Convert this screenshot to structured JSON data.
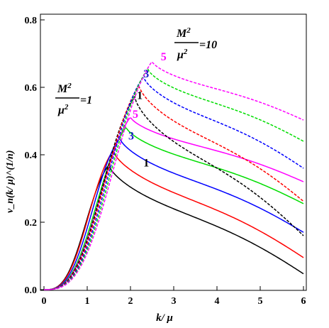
{
  "chart_data": {
    "type": "line",
    "xlabel": "k/ μ",
    "ylabel": "v_n(k/ μ)^(1/n)",
    "xlim": [
      0,
      6.1
    ],
    "ylim": [
      0,
      0.8
    ],
    "x_ticks": [
      "0",
      "1",
      "2",
      "3",
      "4",
      "5",
      "6"
    ],
    "y_ticks": [
      "0.0",
      "0.2",
      "0.4",
      "0.6",
      "0.8"
    ],
    "grid": false,
    "annotations": [
      {
        "text_num": "M",
        "text_sup": "2",
        "text_den": "μ",
        "text_den_sup": "2",
        "text_eq": "=1"
      },
      {
        "text_num": "M",
        "text_sup": "2",
        "text_den": "μ",
        "text_den_sup": "2",
        "text_eq": "=10"
      }
    ],
    "curve_labels": [
      {
        "text": "1",
        "color": "#000000",
        "x": 2.3,
        "y": 0.365
      },
      {
        "text": "3",
        "color": "#1a1acc",
        "x": 1.95,
        "y": 0.445
      },
      {
        "text": "5",
        "color": "#ff00ff",
        "x": 2.05,
        "y": 0.51
      },
      {
        "text": "1",
        "color": "#000000",
        "x": 2.15,
        "y": 0.565
      },
      {
        "text": "3",
        "color": "#1a1acc",
        "x": 2.3,
        "y": 0.63
      },
      {
        "text": "5",
        "color": "#ff00ff",
        "x": 2.7,
        "y": 0.68
      }
    ],
    "series": [
      {
        "color": "#000000",
        "dash": false,
        "peak": 0.37,
        "xpeak": 1.5,
        "end": 0.047
      },
      {
        "color": "#ff0000",
        "dash": false,
        "peak": 0.412,
        "xpeak": 1.6,
        "end": 0.095
      },
      {
        "color": "#0000ff",
        "dash": false,
        "peak": 0.45,
        "xpeak": 1.75,
        "end": 0.17
      },
      {
        "color": "#00dd00",
        "dash": false,
        "peak": 0.482,
        "xpeak": 1.9,
        "end": 0.255
      },
      {
        "color": "#ff00ff",
        "dash": false,
        "peak": 0.512,
        "xpeak": 2.0,
        "end": 0.32
      },
      {
        "color": "#000000",
        "dash": true,
        "peak": 0.572,
        "xpeak": 2.1,
        "end": 0.16
      },
      {
        "color": "#ff0000",
        "dash": true,
        "peak": 0.605,
        "xpeak": 2.2,
        "end": 0.262
      },
      {
        "color": "#0000ff",
        "dash": true,
        "peak": 0.632,
        "xpeak": 2.3,
        "end": 0.36
      },
      {
        "color": "#00dd00",
        "dash": true,
        "peak": 0.655,
        "xpeak": 2.4,
        "end": 0.44
      },
      {
        "color": "#ff00ff",
        "dash": true,
        "peak": 0.677,
        "xpeak": 2.5,
        "end": 0.503
      }
    ]
  }
}
